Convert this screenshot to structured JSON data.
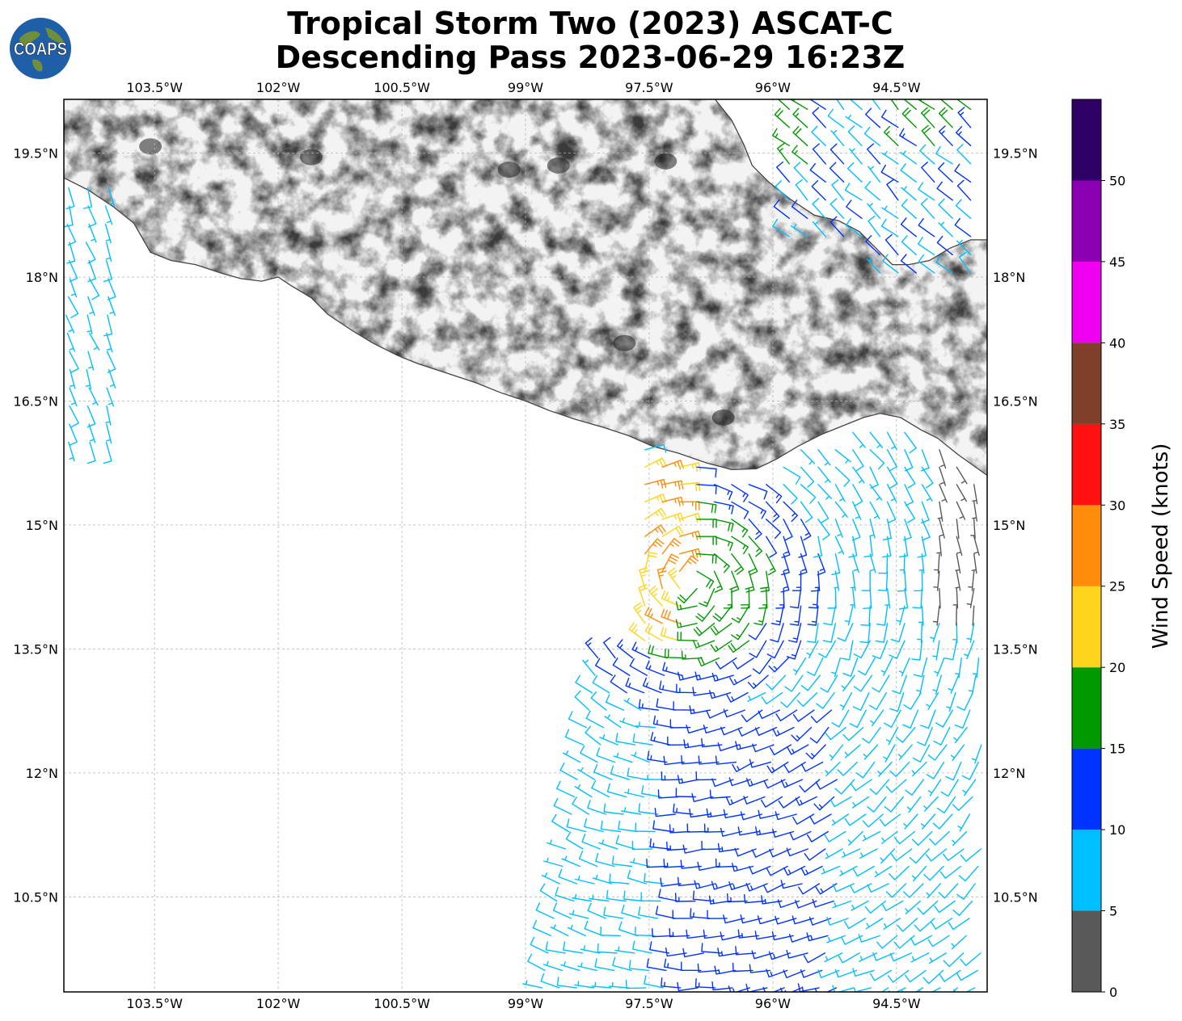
{
  "title": {
    "line1": "Tropical Storm Two (2023) ASCAT-C",
    "line2": "Descending Pass 2023-06-29 16:23Z"
  },
  "logo": {
    "text": "COAPS",
    "ocean_color": "#1f5fa8",
    "land_color": "#6f8f3c"
  },
  "map": {
    "lon_range": [
      -104.6,
      -93.4
    ],
    "lat_range": [
      9.35,
      20.15
    ],
    "lon_ticks": [
      {
        "value": -103.5,
        "label": "103.5°W"
      },
      {
        "value": -102.0,
        "label": "102°W"
      },
      {
        "value": -100.5,
        "label": "100.5°W"
      },
      {
        "value": -99.0,
        "label": "99°W"
      },
      {
        "value": -97.5,
        "label": "97.5°W"
      },
      {
        "value": -96.0,
        "label": "96°W"
      },
      {
        "value": -94.5,
        "label": "94.5°W"
      }
    ],
    "lat_ticks": [
      {
        "value": 19.5,
        "label": "19.5°N"
      },
      {
        "value": 18.0,
        "label": "18°N"
      },
      {
        "value": 16.5,
        "label": "16.5°N"
      },
      {
        "value": 15.0,
        "label": "15°N"
      },
      {
        "value": 13.5,
        "label": "13.5°N"
      },
      {
        "value": 12.0,
        "label": "12°N"
      },
      {
        "value": 10.5,
        "label": "10.5°N"
      }
    ],
    "grid": true,
    "coastline_color": "#444444",
    "terrain": "grayscale elevation shading over land"
  },
  "colorbar": {
    "label": "Wind Speed (knots)",
    "ticks": [
      "0",
      "5",
      "10",
      "15",
      "20",
      "25",
      "30",
      "35",
      "40",
      "45",
      "50"
    ],
    "bins": [
      {
        "min": 0,
        "max": 5,
        "color": "#595959"
      },
      {
        "min": 5,
        "max": 10,
        "color": "#00bfff"
      },
      {
        "min": 10,
        "max": 15,
        "color": "#0033ff"
      },
      {
        "min": 15,
        "max": 20,
        "color": "#009900"
      },
      {
        "min": 20,
        "max": 25,
        "color": "#ffd41a"
      },
      {
        "min": 25,
        "max": 30,
        "color": "#ff8c0a"
      },
      {
        "min": 30,
        "max": 35,
        "color": "#ff1111"
      },
      {
        "min": 35,
        "max": 40,
        "color": "#7f3f2a"
      },
      {
        "min": 40,
        "max": 45,
        "color": "#f000f0"
      },
      {
        "min": 45,
        "max": 50,
        "color": "#8c00b4"
      },
      {
        "min": 50,
        "max": 55,
        "color": "#2f0066"
      }
    ]
  },
  "wind_barbs": {
    "units": "knots",
    "swaths": [
      {
        "lon_range": [
          -104.6,
          -104.0
        ],
        "lat_range": [
          15.9,
          19.2
        ],
        "speed_range": [
          5,
          10
        ]
      },
      {
        "lon_range": [
          -95.8,
          -93.4
        ],
        "lat_range": [
          17.6,
          20.1
        ],
        "speed_range": [
          0,
          20
        ]
      },
      {
        "lon_range": [
          -98.8,
          -93.4
        ],
        "lat_range": [
          9.35,
          16.3
        ],
        "speed_range": [
          0,
          30
        ]
      }
    ]
  }
}
